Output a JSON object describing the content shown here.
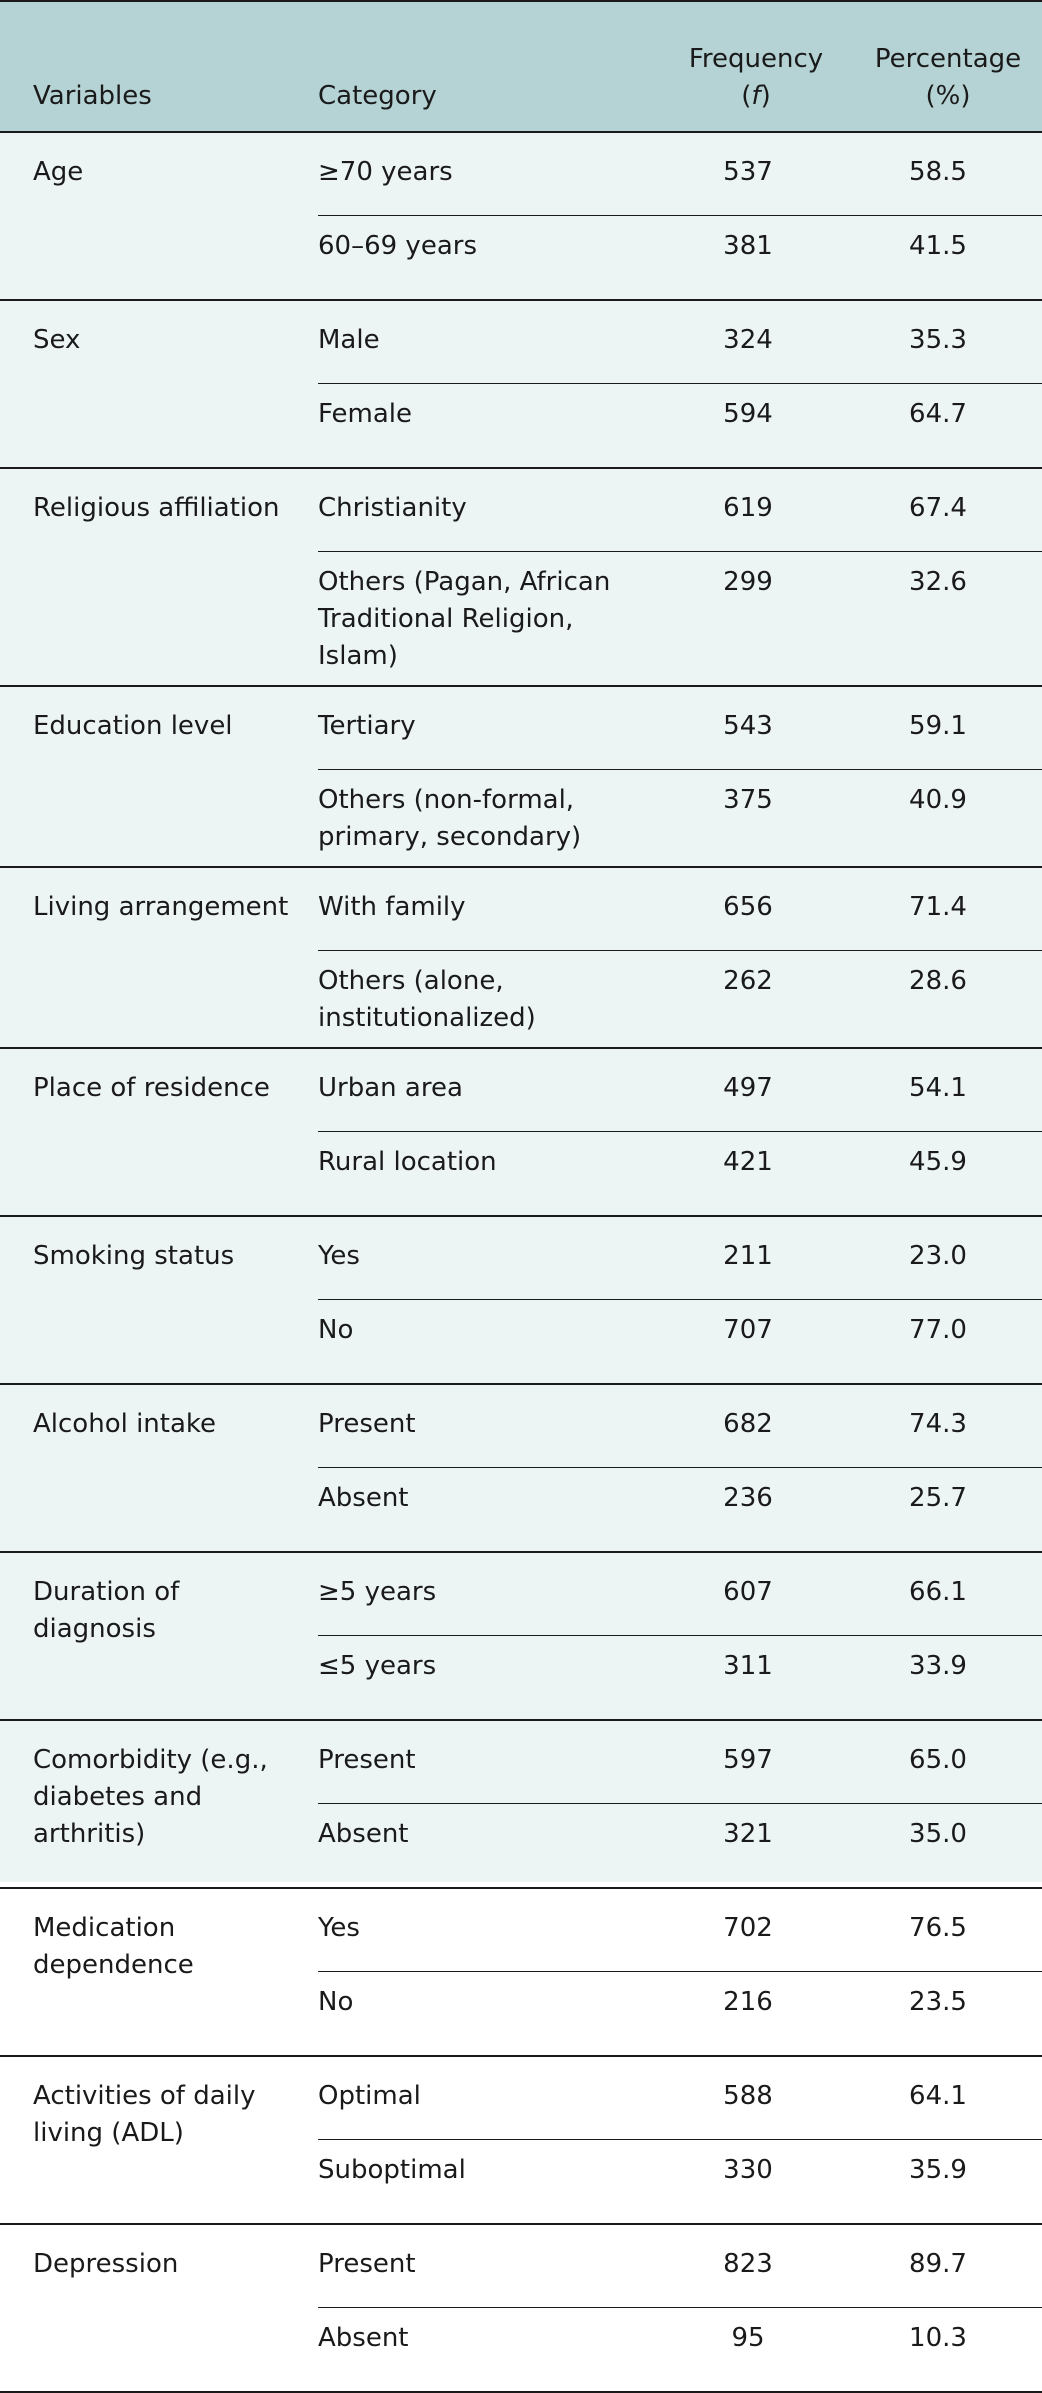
{
  "header": {
    "variables": "Variables",
    "category": "Category",
    "frequency_line1": "Frequency",
    "frequency_open": "(",
    "frequency_symbol": "f",
    "frequency_close": ")",
    "percentage_line1": "Percentage",
    "percentage_line2": "(%)"
  },
  "groups": [
    {
      "variable": "Age",
      "rows": [
        {
          "category": "≥70 years",
          "frequency": "537",
          "percentage": "58.5"
        },
        {
          "category": "60–69 years",
          "frequency": "381",
          "percentage": "41.5"
        }
      ]
    },
    {
      "variable": "Sex",
      "rows": [
        {
          "category": "Male",
          "frequency": "324",
          "percentage": "35.3"
        },
        {
          "category": "Female",
          "frequency": "594",
          "percentage": "64.7"
        }
      ]
    },
    {
      "variable": "Religious affiliation",
      "rows": [
        {
          "category": "Christianity",
          "frequency": "619",
          "percentage": "67.4"
        },
        {
          "category": "Others (Pagan, African Traditional Religion, Islam)",
          "frequency": "299",
          "percentage": "32.6"
        }
      ]
    },
    {
      "variable": "Education level",
      "rows": [
        {
          "category": "Tertiary",
          "frequency": "543",
          "percentage": "59.1"
        },
        {
          "category": "Others (non-formal, primary, secondary)",
          "frequency": "375",
          "percentage": "40.9"
        }
      ]
    },
    {
      "variable": "Living arrangement",
      "rows": [
        {
          "category": "With family",
          "frequency": "656",
          "percentage": "71.4"
        },
        {
          "category": "Others (alone, institutionalized)",
          "frequency": "262",
          "percentage": "28.6"
        }
      ]
    },
    {
      "variable": "Place of residence",
      "rows": [
        {
          "category": "Urban area",
          "frequency": "497",
          "percentage": "54.1"
        },
        {
          "category": "Rural location",
          "frequency": "421",
          "percentage": "45.9"
        }
      ]
    },
    {
      "variable": "Smoking status",
      "rows": [
        {
          "category": "Yes",
          "frequency": "211",
          "percentage": "23.0"
        },
        {
          "category": "No",
          "frequency": "707",
          "percentage": "77.0"
        }
      ]
    },
    {
      "variable": "Alcohol intake",
      "rows": [
        {
          "category": "Present",
          "frequency": "682",
          "percentage": "74.3"
        },
        {
          "category": "Absent",
          "frequency": "236",
          "percentage": "25.7"
        }
      ]
    },
    {
      "variable": "Duration of diagnosis",
      "rows": [
        {
          "category": "≥5 years",
          "frequency": "607",
          "percentage": "66.1"
        },
        {
          "category": "≤5 years",
          "frequency": "311",
          "percentage": "33.9"
        }
      ]
    },
    {
      "variable": "Comorbidity (e.g., diabetes and arthritis)",
      "rows": [
        {
          "category": "Present",
          "frequency": "597",
          "percentage": "65.0"
        },
        {
          "category": "Absent",
          "frequency": "321",
          "percentage": "35.0"
        }
      ]
    },
    {
      "variable": "Medication dependence",
      "rows": [
        {
          "category": "Yes",
          "frequency": "702",
          "percentage": "76.5"
        },
        {
          "category": "No",
          "frequency": "216",
          "percentage": "23.5"
        }
      ]
    },
    {
      "variable": "Activities of daily living (ADL)",
      "rows": [
        {
          "category": "Optimal",
          "frequency": "588",
          "percentage": "64.1"
        },
        {
          "category": "Suboptimal",
          "frequency": "330",
          "percentage": "35.9"
        }
      ]
    },
    {
      "variable": "Depression",
      "rows": [
        {
          "category": "Present",
          "frequency": "823",
          "percentage": "89.7"
        },
        {
          "category": "Absent",
          "frequency": "95",
          "percentage": "10.3"
        }
      ]
    }
  ]
}
